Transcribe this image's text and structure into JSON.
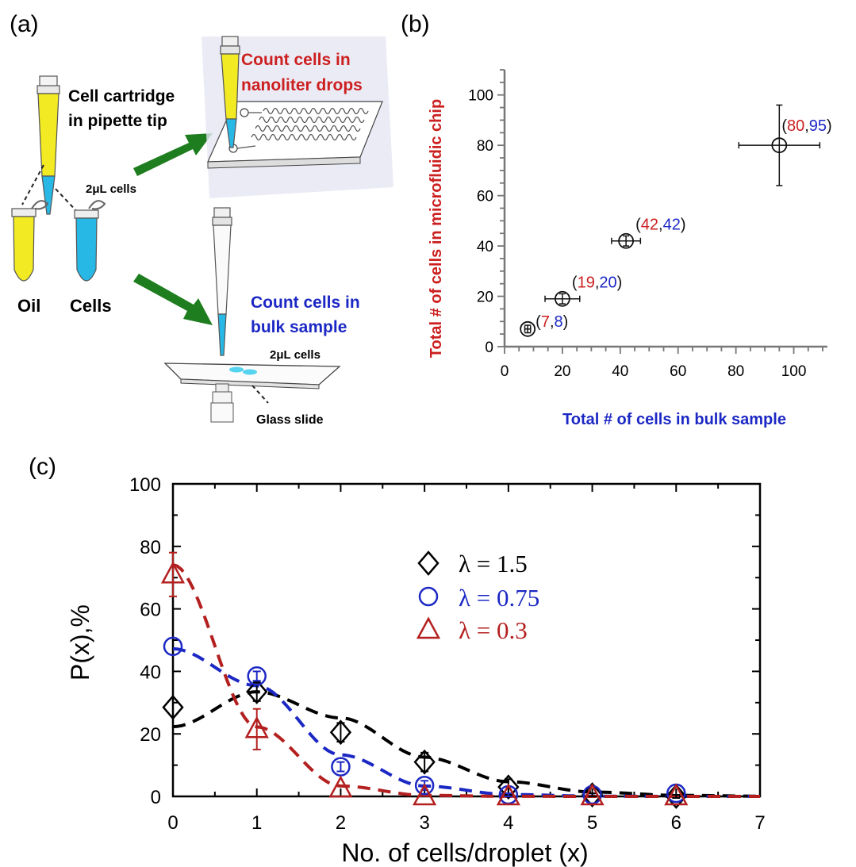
{
  "colors": {
    "red": "#cc1f1f",
    "blue": "#1c28c4",
    "dark_red": "#b3201f",
    "black": "#000000",
    "yellow": "#f2ea22",
    "cyan": "#28b8e6",
    "green": "#1e7d1e",
    "chip_bg": "#e6e6f4"
  },
  "panel_a": {
    "label": "(a)",
    "cartridge_line1": "Cell cartridge",
    "cartridge_line2": "in pipette tip",
    "cells_2ul": "2μL cells",
    "oil": "Oil",
    "cells": "Cells",
    "nanoliter_line1": "Count cells in",
    "nanoliter_line2": "nanoliter drops",
    "bulk_line1": "Count cells in",
    "bulk_line2": "bulk sample",
    "slide_cells": "2μL cells",
    "glass_slide": "Glass slide",
    "icons": [
      "pipette-tip-icon",
      "tube-icon",
      "microfluidic-chip-icon",
      "glass-slide-icon",
      "microscope-objective-icon",
      "arrow-icon"
    ]
  },
  "panel_b": {
    "label": "(b)",
    "ylabel": "Total # of cells in microfluidic chip",
    "xlabel": "Total # of cells in bulk sample"
  },
  "panel_c": {
    "label": "(c)",
    "ylabel": "P(x),%",
    "xlabel": "No. of cells/droplet (x)",
    "legend": [
      {
        "text": "λ = 1.5",
        "color": "#000000",
        "marker": "diamond"
      },
      {
        "text": "λ = 0.75",
        "color": "#1c28c4",
        "marker": "circle"
      },
      {
        "text": "λ = 0.3",
        "color": "#b3201f",
        "marker": "triangle"
      }
    ]
  },
  "chart_data": [
    {
      "type": "scatter",
      "title": "",
      "xlabel": "Total # of cells in bulk sample",
      "ylabel": "Total # of cells in microfluidic chip",
      "xlim": [
        0,
        110
      ],
      "ylim": [
        0,
        110
      ],
      "xticks": [
        0,
        20,
        40,
        60,
        80,
        100
      ],
      "yticks": [
        0,
        20,
        40,
        60,
        80,
        100
      ],
      "points": [
        {
          "x": 8,
          "y": 7,
          "xerr": 1,
          "yerr": 1.5,
          "annot": [
            "7",
            "8"
          ]
        },
        {
          "x": 20,
          "y": 19,
          "xerr": 6,
          "yerr": 2,
          "annot": [
            "19",
            "20"
          ]
        },
        {
          "x": 42,
          "y": 42,
          "xerr": 5,
          "yerr": 2,
          "annot": [
            "42",
            "42"
          ]
        },
        {
          "x": 95,
          "y": 80,
          "xerr": 14,
          "yerr": 16,
          "annot": [
            "80",
            "95"
          ]
        }
      ],
      "annotation_colors": [
        "#cc1f1f",
        "#1c28c4"
      ]
    },
    {
      "type": "scatter",
      "title": "",
      "xlabel": "No. of cells/droplet (x)",
      "ylabel": "P(x),%",
      "xlim": [
        0,
        7
      ],
      "ylim": [
        0,
        100
      ],
      "xticks": [
        0,
        1,
        2,
        3,
        4,
        5,
        6,
        7
      ],
      "yticks": [
        0,
        20,
        40,
        60,
        80,
        100
      ],
      "legend_position": "top-right",
      "series": [
        {
          "name": "λ = 1.5",
          "lambda": 1.5,
          "color": "#000000",
          "marker": "diamond",
          "x": [
            0,
            1,
            2,
            3,
            4,
            5,
            6
          ],
          "values": [
            28.5,
            33.5,
            20.5,
            11,
            3,
            0.5,
            0
          ],
          "yerr": [
            0,
            3,
            3,
            3,
            2.5,
            0.5,
            0.5
          ]
        },
        {
          "name": "λ = 0.75",
          "lambda": 0.75,
          "color": "#1c28c4",
          "marker": "circle",
          "x": [
            0,
            1,
            2,
            3,
            4,
            5,
            6
          ],
          "values": [
            48,
            38.5,
            9.5,
            3.5,
            0.5,
            0.5,
            1
          ],
          "yerr": [
            0,
            1.5,
            1.5,
            1.5,
            0.5,
            0,
            0
          ]
        },
        {
          "name": "λ = 0.3",
          "lambda": 0.3,
          "color": "#b3201f",
          "marker": "triangle",
          "x": [
            0,
            1,
            2,
            3,
            4,
            5,
            6
          ],
          "values": [
            71,
            21.5,
            2.5,
            0,
            0,
            0,
            0
          ],
          "yerr": [
            7,
            6.5,
            0,
            0,
            0,
            0,
            0
          ]
        }
      ]
    }
  ]
}
